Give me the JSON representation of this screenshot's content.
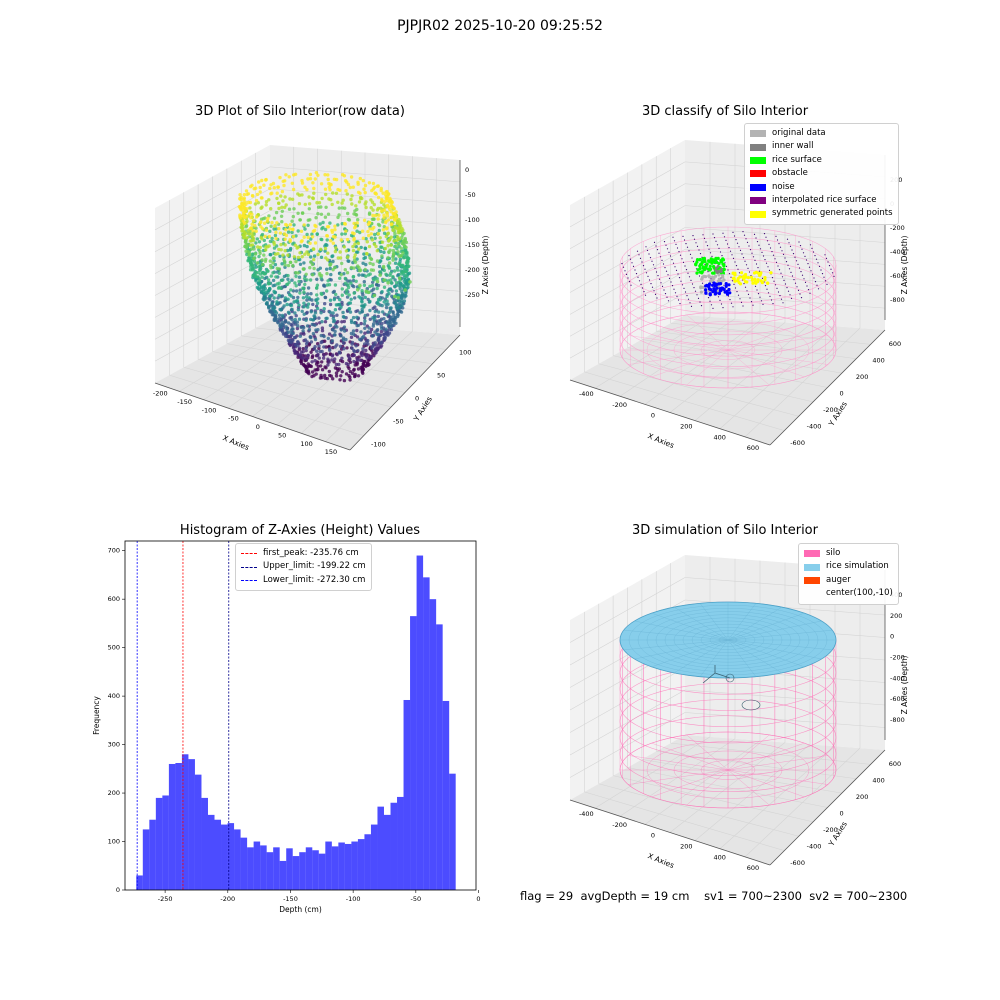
{
  "suptitle": "PJPJR02 2025-10-20 09:25:52",
  "panels": {
    "raw": {
      "title": "3D Plot of Silo Interior(row data)",
      "xlabel": "X Axies",
      "ylabel": "Y Axies",
      "zlabel": "Z Axies (Depth)",
      "xticks": [
        "-200",
        "-150",
        "-100",
        "-50",
        "0",
        "50",
        "100",
        "150"
      ],
      "yticks": [
        "-100",
        "-50",
        "0",
        "50",
        "100"
      ],
      "zticks": [
        "0",
        "-50",
        "-100",
        "-150",
        "-200",
        "-250"
      ]
    },
    "classify": {
      "title": "3D classify of Silo Interior",
      "xlabel": "X Axies",
      "ylabel": "Y Axies",
      "zlabel": "Z Axies (Depth)",
      "xticks": [
        "-400",
        "-200",
        "0",
        "200",
        "400",
        "600"
      ],
      "yticks": [
        "-600",
        "-400",
        "-200",
        "0",
        "200",
        "400",
        "600"
      ],
      "zticks": [
        "200",
        "0",
        "-200",
        "-400",
        "-600",
        "-800"
      ],
      "legend": [
        {
          "label": "original data",
          "color": "#b3b3b3"
        },
        {
          "label": "inner wall",
          "color": "#808080"
        },
        {
          "label": "rice surface",
          "color": "#00ff00"
        },
        {
          "label": "obstacle",
          "color": "#ff0000"
        },
        {
          "label": "noise",
          "color": "#0000ff"
        },
        {
          "label": "interpolated rice surface",
          "color": "#800080"
        },
        {
          "label": "symmetric generated points",
          "color": "#ffff00"
        }
      ]
    },
    "histogram": {
      "title": "Histogram of Z-Axies (Height) Values",
      "xlabel": "Depth (cm)",
      "ylabel": "Frequency",
      "legend": [
        {
          "label": "first_peak: -235.76 cm",
          "color": "#ff0000"
        },
        {
          "label": "Upper_limit: -199.22 cm",
          "color": "#00008b"
        },
        {
          "label": "Lower_limit: -272.30 cm",
          "color": "#0000ff"
        }
      ]
    },
    "simulation": {
      "title": "3D simulation of Silo Interior",
      "xlabel": "X Axies",
      "ylabel": "Y Axies",
      "zlabel": "Z Axies (Depth)",
      "xticks": [
        "-400",
        "-200",
        "0",
        "200",
        "400",
        "600"
      ],
      "yticks": [
        "-600",
        "-400",
        "-200",
        "0",
        "200",
        "400",
        "600"
      ],
      "zticks": [
        "400",
        "200",
        "0",
        "-200",
        "-400",
        "-600",
        "-800"
      ],
      "legend": [
        {
          "label": "silo",
          "color": "#ff69b4"
        },
        {
          "label": "rice simulation",
          "color": "#87ceeb"
        },
        {
          "label": "auger",
          "color": "#ff4500"
        },
        {
          "label": "center(100,-10)",
          "color": ""
        }
      ]
    }
  },
  "status": {
    "flag": "flag = 29",
    "avg_depth": "avgDepth = 19 cm",
    "sv1": "sv1 = 700~2300",
    "sv2": "sv2 = 700~2300"
  },
  "chart_data": [
    {
      "type": "scatter",
      "title": "3D Plot of Silo Interior(row data)",
      "xlabel": "X Axies",
      "ylabel": "Y Axies",
      "zlabel": "Z Axies (Depth)",
      "xlim": [
        -200,
        180
      ],
      "ylim": [
        -100,
        120
      ],
      "zlim": [
        -290,
        0
      ],
      "colormap": "viridis"
    },
    {
      "type": "scatter",
      "title": "3D classify of Silo Interior",
      "xlabel": "X Axies",
      "ylabel": "Y Axies",
      "zlabel": "Z Axies (Depth)",
      "xlim": [
        -500,
        700
      ],
      "ylim": [
        -700,
        700
      ],
      "zlim": [
        -900,
        300
      ],
      "series": [
        {
          "name": "original data"
        },
        {
          "name": "inner wall"
        },
        {
          "name": "rice surface"
        },
        {
          "name": "obstacle"
        },
        {
          "name": "noise"
        },
        {
          "name": "interpolated rice surface"
        },
        {
          "name": "symmetric generated points"
        }
      ],
      "legend_position": "top-right"
    },
    {
      "type": "bar",
      "title": "Histogram of Z-Axies (Height) Values",
      "xlabel": "Depth (cm)",
      "ylabel": "Frequency",
      "xlim": [
        -282,
        -2
      ],
      "ylim": [
        0,
        720
      ],
      "x_ticks": [
        -250,
        -200,
        -150,
        -100,
        -50,
        0
      ],
      "y_ticks": [
        0,
        100,
        200,
        300,
        400,
        500,
        600,
        700
      ],
      "bin_start": -273,
      "bin_width": 5.2,
      "values": [
        30,
        125,
        145,
        190,
        195,
        260,
        262,
        280,
        270,
        238,
        190,
        155,
        145,
        135,
        138,
        125,
        108,
        88,
        100,
        92,
        78,
        88,
        60,
        86,
        70,
        78,
        88,
        82,
        75,
        100,
        90,
        98,
        95,
        100,
        105,
        115,
        135,
        172,
        155,
        180,
        192,
        392,
        565,
        690,
        645,
        600,
        548,
        390,
        240
      ],
      "color": "#0000ff",
      "vlines": [
        {
          "name": "first_peak",
          "x": -235.76,
          "color": "#ff0000"
        },
        {
          "name": "Upper_limit",
          "x": -199.22,
          "color": "#00008b"
        },
        {
          "name": "Lower_limit",
          "x": -272.3,
          "color": "#0000ff"
        }
      ],
      "legend_position": "top-left"
    },
    {
      "type": "scatter",
      "title": "3D simulation of Silo Interior",
      "xlabel": "X Axies",
      "ylabel": "Y Axies",
      "zlabel": "Z Axies (Depth)",
      "xlim": [
        -500,
        700
      ],
      "ylim": [
        -700,
        700
      ],
      "zlim": [
        -900,
        450
      ],
      "series": [
        {
          "name": "silo"
        },
        {
          "name": "rice simulation"
        },
        {
          "name": "auger"
        },
        {
          "name": "center(100,-10)"
        }
      ],
      "legend_position": "top-right"
    }
  ]
}
